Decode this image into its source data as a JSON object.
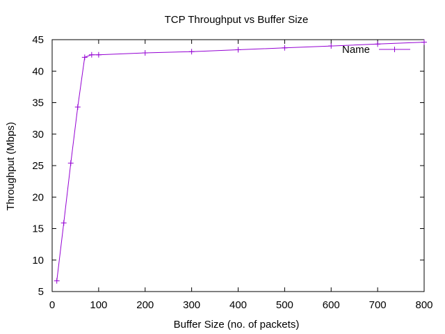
{
  "chart_data": {
    "type": "line",
    "title": "TCP Throughput vs Buffer Size",
    "xlabel": "Buffer Size (no. of packets)",
    "ylabel": "Throughput (Mbps)",
    "xlim": [
      0,
      800
    ],
    "ylim": [
      5,
      45
    ],
    "xticks": [
      0,
      100,
      200,
      300,
      400,
      500,
      600,
      700,
      800
    ],
    "yticks": [
      5,
      10,
      15,
      20,
      25,
      30,
      35,
      40,
      45
    ],
    "grid": false,
    "legend_position": "top-right",
    "series": [
      {
        "name": "Name",
        "color": "#9400d3",
        "marker": "plus",
        "x": [
          10,
          25,
          40,
          55,
          70,
          85,
          100,
          200,
          300,
          400,
          500,
          600,
          700,
          800
        ],
        "y": [
          6.7,
          15.9,
          25.4,
          34.3,
          42.2,
          42.6,
          42.6,
          42.9,
          43.1,
          43.4,
          43.7,
          44.0,
          44.3,
          44.6
        ]
      }
    ]
  }
}
